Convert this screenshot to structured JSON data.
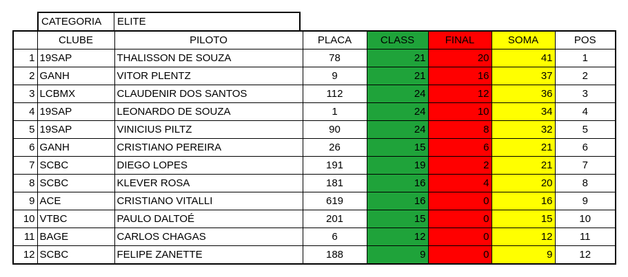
{
  "category": {
    "label": "CATEGORIA",
    "value": "ELITE"
  },
  "colors": {
    "class": "#1fa33a",
    "final": "#ff0000",
    "soma": "#ffff00"
  },
  "headers": {
    "clube": "CLUBE",
    "piloto": "PILOTO",
    "placa": "PLACA",
    "class": "CLASS",
    "final": "FINAL",
    "soma": "SOMA",
    "pos": "POS"
  },
  "rows": [
    {
      "n": "1",
      "clube": "19SAP",
      "piloto": "THALISSON DE SOUZA",
      "placa": "78",
      "class": "21",
      "final": "20",
      "soma": "41",
      "pos": "1"
    },
    {
      "n": "2",
      "clube": "GANH",
      "piloto": "VITOR PLENTZ",
      "placa": "9",
      "class": "21",
      "final": "16",
      "soma": "37",
      "pos": "2"
    },
    {
      "n": "3",
      "clube": "LCBMX",
      "piloto": "CLAUDENIR DOS SANTOS",
      "placa": "112",
      "class": "24",
      "final": "12",
      "soma": "36",
      "pos": "3"
    },
    {
      "n": "4",
      "clube": "19SAP",
      "piloto": "LEONARDO DE SOUZA",
      "placa": "1",
      "class": "24",
      "final": "10",
      "soma": "34",
      "pos": "4"
    },
    {
      "n": "5",
      "clube": "19SAP",
      "piloto": "VINICIUS PILTZ",
      "placa": "90",
      "class": "24",
      "final": "8",
      "soma": "32",
      "pos": "5"
    },
    {
      "n": "6",
      "clube": "GANH",
      "piloto": "CRISTIANO PEREIRA",
      "placa": "26",
      "class": "15",
      "final": "6",
      "soma": "21",
      "pos": "6"
    },
    {
      "n": "7",
      "clube": "SCBC",
      "piloto": "DIEGO LOPES",
      "placa": "191",
      "class": "19",
      "final": "2",
      "soma": "21",
      "pos": "7"
    },
    {
      "n": "8",
      "clube": "SCBC",
      "piloto": "KLEVER ROSA",
      "placa": "181",
      "class": "16",
      "final": "4",
      "soma": "20",
      "pos": "8"
    },
    {
      "n": "9",
      "clube": "ACE",
      "piloto": "CRISTIANO VITALLI",
      "placa": "619",
      "class": "16",
      "final": "0",
      "soma": "16",
      "pos": "9"
    },
    {
      "n": "10",
      "clube": "VTBC",
      "piloto": "PAULO DALTOÉ",
      "placa": "201",
      "class": "15",
      "final": "0",
      "soma": "15",
      "pos": "10"
    },
    {
      "n": "11",
      "clube": "BAGE",
      "piloto": "CARLOS CHAGAS",
      "placa": "6",
      "class": "12",
      "final": "0",
      "soma": "12",
      "pos": "11"
    },
    {
      "n": "12",
      "clube": "SCBC",
      "piloto": "FELIPE ZANETTE",
      "placa": "188",
      "class": "9",
      "final": "0",
      "soma": "9",
      "pos": "12"
    }
  ]
}
